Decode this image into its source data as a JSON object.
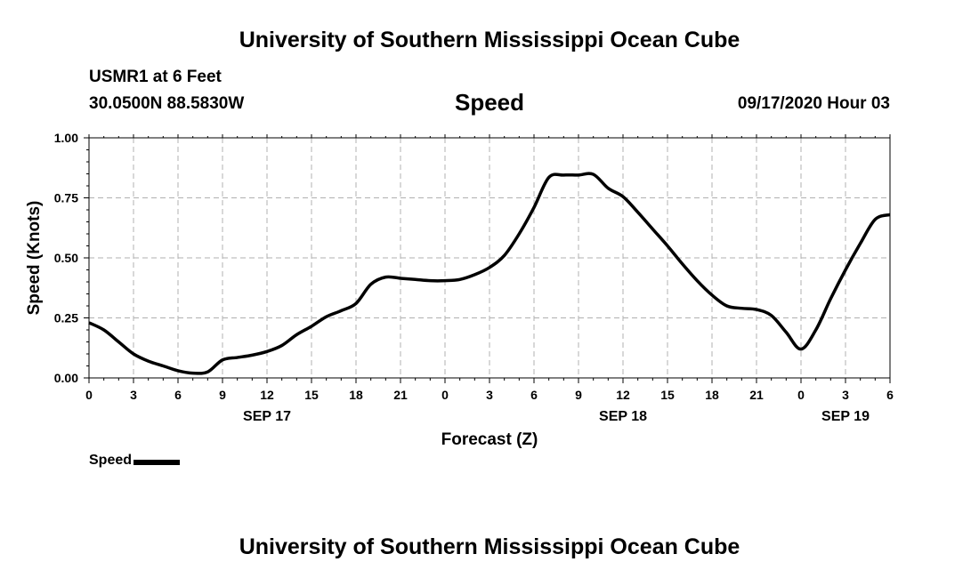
{
  "header": {
    "top_title": "University of Southern Mississippi Ocean Cube",
    "bottom_title": "University of Southern Mississippi Ocean Cube",
    "station": "USMR1 at 6 Feet",
    "coords": "30.0500N 88.5830W",
    "variable": "Speed",
    "timestamp": "09/17/2020 Hour 03"
  },
  "legend": {
    "label": "Speed"
  },
  "chart_data": {
    "type": "line",
    "title": "Speed",
    "xlabel": "Forecast (Z)",
    "ylabel": "Speed (Knots)",
    "ylim": [
      0,
      1
    ],
    "xlim": [
      0,
      54
    ],
    "y_ticks": [
      "0.00",
      "0.25",
      "0.50",
      "0.75",
      "1.00"
    ],
    "x_ticks": [
      "0",
      "3",
      "6",
      "9",
      "12",
      "15",
      "18",
      "21",
      "0",
      "3",
      "6",
      "9",
      "12",
      "15",
      "18",
      "21",
      "0",
      "3",
      "6"
    ],
    "date_labels": [
      {
        "label": "SEP 17",
        "at_hour": 12
      },
      {
        "label": "SEP 18",
        "at_hour": 36
      },
      {
        "label": "SEP 19",
        "at_hour": 51
      }
    ],
    "grid": true,
    "legend_position": "bottom-left",
    "series": [
      {
        "name": "Speed",
        "color": "#000000",
        "x": [
          0,
          1,
          2,
          3,
          4,
          5,
          6,
          7,
          8,
          9,
          10,
          11,
          12,
          13,
          14,
          15,
          16,
          17,
          18,
          19,
          20,
          21,
          22,
          23,
          24,
          25,
          26,
          27,
          28,
          29,
          30,
          31,
          32,
          33,
          34,
          35,
          36,
          37,
          38,
          39,
          40,
          41,
          42,
          43,
          44,
          45,
          46,
          47,
          48,
          49,
          50,
          51,
          52,
          53,
          54
        ],
        "values": [
          0.23,
          0.2,
          0.15,
          0.1,
          0.07,
          0.05,
          0.03,
          0.02,
          0.025,
          0.075,
          0.085,
          0.095,
          0.11,
          0.135,
          0.18,
          0.215,
          0.255,
          0.28,
          0.31,
          0.39,
          0.42,
          0.415,
          0.41,
          0.405,
          0.405,
          0.41,
          0.43,
          0.46,
          0.51,
          0.6,
          0.71,
          0.835,
          0.845,
          0.845,
          0.848,
          0.79,
          0.755,
          0.69,
          0.62,
          0.55,
          0.475,
          0.405,
          0.345,
          0.3,
          0.29,
          0.285,
          0.26,
          0.19,
          0.12,
          0.2,
          0.33,
          0.45,
          0.56,
          0.66,
          0.68
        ]
      }
    ]
  }
}
